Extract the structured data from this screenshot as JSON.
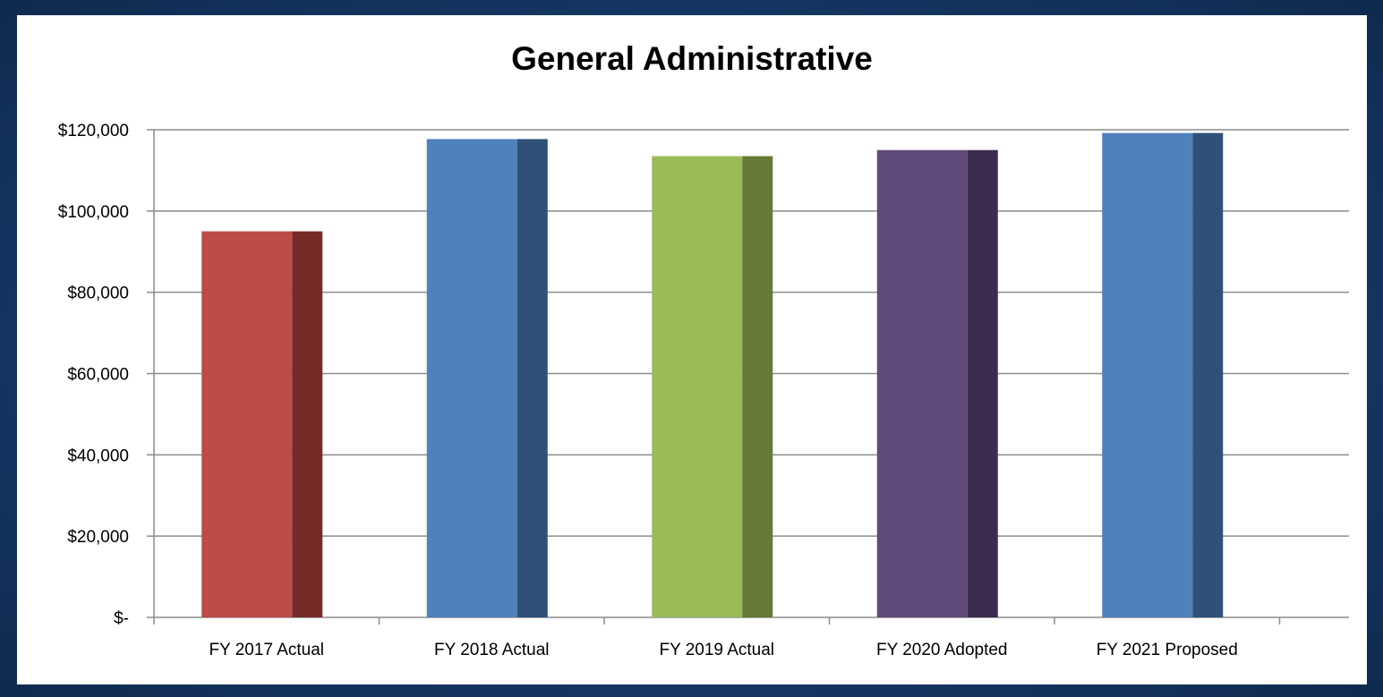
{
  "chart_data": {
    "type": "bar",
    "title": "General Administrative",
    "xlabel": "",
    "ylabel": "",
    "categories": [
      "FY 2017 Actual",
      "FY 2018 Actual",
      "FY 2019 Actual",
      "FY 2020 Adopted",
      "FY 2021 Proposed"
    ],
    "values": [
      95000,
      117700,
      113500,
      115000,
      119200
    ],
    "ylim": [
      0,
      120000
    ],
    "yticks": [
      0,
      20000,
      40000,
      60000,
      80000,
      100000,
      120000
    ],
    "ytick_labels": [
      "$-",
      "$20,000",
      "$40,000",
      "$60,000",
      "$80,000",
      "$100,000",
      "$120,000"
    ],
    "grid": true,
    "legend": "none",
    "colors": {
      "front": [
        "#be4b48",
        "#4f81bd",
        "#9bbb59",
        "#604a7b",
        "#4f81bd"
      ],
      "side": [
        "#772b29",
        "#2f5178",
        "#657a37",
        "#3b2d4d",
        "#2f5178"
      ]
    }
  }
}
